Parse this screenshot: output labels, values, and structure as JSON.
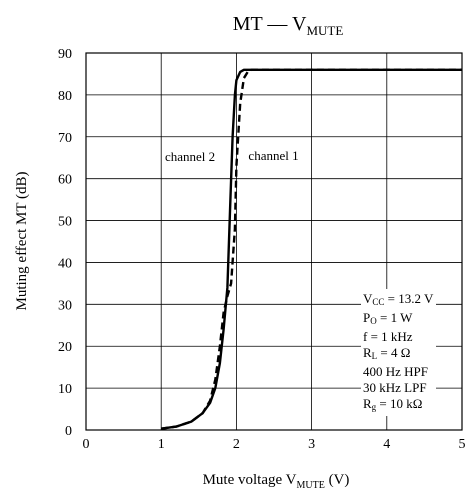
{
  "chart_data": {
    "type": "line",
    "title": {
      "main": "MT — V",
      "sub": "MUTE"
    },
    "xlabel": {
      "main": "Mute voltage  V",
      "sub": "MUTE",
      "unit": "  (V)"
    },
    "ylabel": "Muting effect  MT  (dB)",
    "xlim": [
      0,
      5
    ],
    "ylim": [
      0,
      90
    ],
    "xticks": [
      "0",
      "1",
      "2",
      "3",
      "4",
      "5"
    ],
    "yticks": [
      "0",
      "10",
      "20",
      "30",
      "40",
      "50",
      "60",
      "70",
      "80",
      "90"
    ],
    "grid": true,
    "series": [
      {
        "name": "channel 1",
        "style": "dashed",
        "x": [
          1.0,
          1.2,
          1.4,
          1.55,
          1.65,
          1.72,
          1.78,
          1.83,
          1.88,
          1.93,
          1.98,
          2.0,
          2.05,
          2.1,
          2.15,
          2.2,
          2.5,
          3.0,
          5.0
        ],
        "y": [
          0.3,
          0.8,
          2.0,
          4.0,
          7.0,
          12.0,
          20.0,
          28.0,
          32.0,
          35.0,
          48.0,
          63.0,
          78.0,
          84.0,
          85.5,
          86.0,
          86.0,
          86.0,
          86.0
        ]
      },
      {
        "name": "channel 2",
        "style": "solid",
        "x": [
          1.0,
          1.2,
          1.4,
          1.55,
          1.65,
          1.72,
          1.78,
          1.83,
          1.88,
          1.92,
          1.95,
          1.98,
          2.0,
          2.05,
          2.1,
          2.2,
          2.5,
          3.0,
          5.0
        ],
        "y": [
          0.3,
          0.8,
          2.0,
          4.0,
          6.5,
          10.0,
          16.0,
          24.0,
          34.0,
          55.0,
          70.0,
          80.0,
          83.5,
          85.5,
          86.0,
          86.0,
          86.0,
          86.0,
          86.0
        ]
      }
    ],
    "annotations": [
      {
        "text": "channel 2",
        "x": 1.05,
        "y": 64.2
      },
      {
        "text": "channel 1",
        "x": 2.16,
        "y": 64.5
      }
    ],
    "conditions": [
      {
        "main": "V",
        "sub": "CC",
        "rest": " = 13.2 V"
      },
      {
        "main": "P",
        "sub": "O",
        "rest": " = 1 W"
      },
      {
        "main": "f = 1 kHz",
        "sub": "",
        "rest": ""
      },
      {
        "main": "R",
        "sub": "L",
        "rest": " = 4 Ω"
      },
      {
        "main": "400 Hz HPF",
        "sub": "",
        "rest": ""
      },
      {
        "main": "30 kHz LPF",
        "sub": "",
        "rest": ""
      },
      {
        "main": "R",
        "sub": "g",
        "rest": " = 10 kΩ"
      }
    ]
  }
}
